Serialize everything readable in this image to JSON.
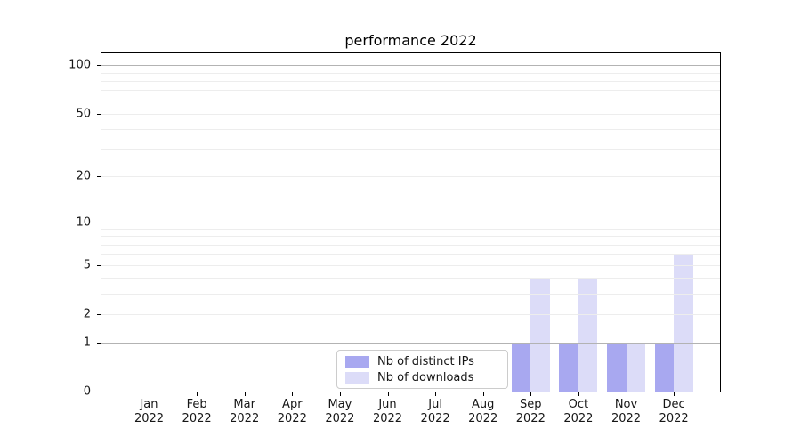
{
  "chart_data": {
    "type": "bar",
    "title": "performance 2022",
    "categories": [
      "Jan",
      "Feb",
      "Mar",
      "Apr",
      "May",
      "Jun",
      "Jul",
      "Aug",
      "Sep",
      "Oct",
      "Nov",
      "Dec"
    ],
    "year_label": "2022",
    "series": [
      {
        "name": "Nb of distinct IPs",
        "color": "#a8a8f0",
        "values": [
          0,
          0,
          0,
          0,
          0,
          0,
          0,
          0,
          1,
          1,
          1,
          1
        ]
      },
      {
        "name": "Nb of downloads",
        "color": "#dcdcf8",
        "values": [
          0,
          0,
          0,
          0,
          0,
          0,
          0,
          0,
          4,
          4,
          1,
          6
        ]
      }
    ],
    "yticks": [
      0,
      1,
      2,
      5,
      10,
      20,
      50,
      100
    ],
    "ylim": [
      0,
      120
    ],
    "yscale": "log1p",
    "xlabel": "",
    "ylabel": "",
    "grid": {
      "major_values": [
        1,
        10,
        100
      ],
      "minor_values": [
        2,
        3,
        4,
        5,
        6,
        7,
        8,
        9,
        20,
        30,
        40,
        50,
        60,
        70,
        80,
        90
      ],
      "major_color": "#b3b3b3",
      "minor_color": "#ededed"
    },
    "legend": {
      "position": "lower center"
    }
  }
}
